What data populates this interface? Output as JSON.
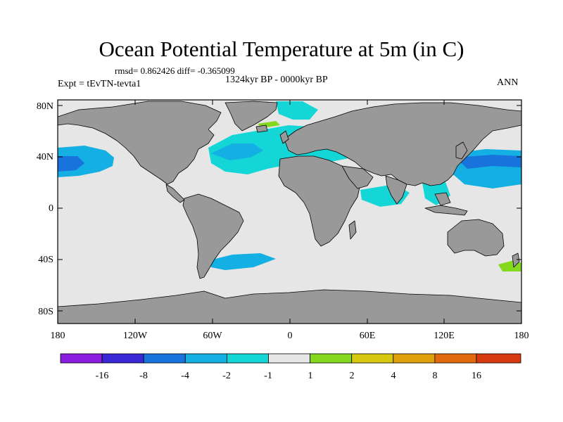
{
  "title": "Ocean Potential Temperature at 5m (in C)",
  "stats": "rmsd= 0.862426 diff= -0.365099",
  "experiment": "Expt = tEvTN-tevta1",
  "period": "1324kyr BP - 0000kyr BP",
  "season": "ANN",
  "lat_labels": [
    "80N",
    "40N",
    "0",
    "40S",
    "80S"
  ],
  "lon_labels": [
    "180",
    "120W",
    "60W",
    "0",
    "60E",
    "120E",
    "180"
  ],
  "colorbar": {
    "labels": [
      "-16",
      "-8",
      "-4",
      "-2",
      "-1",
      "1",
      "2",
      "4",
      "8",
      "16"
    ],
    "colors": [
      "#8a1de0",
      "#3a28d6",
      "#1873dc",
      "#15b0e3",
      "#14d6d6",
      "#e6e6e6",
      "#84d81e",
      "#d6c80e",
      "#e0a00c",
      "#e26a0e",
      "#d83a10"
    ]
  },
  "map_colors": {
    "ocean": "#e6e6e6",
    "land": "#999999",
    "coast": "#000000"
  }
}
